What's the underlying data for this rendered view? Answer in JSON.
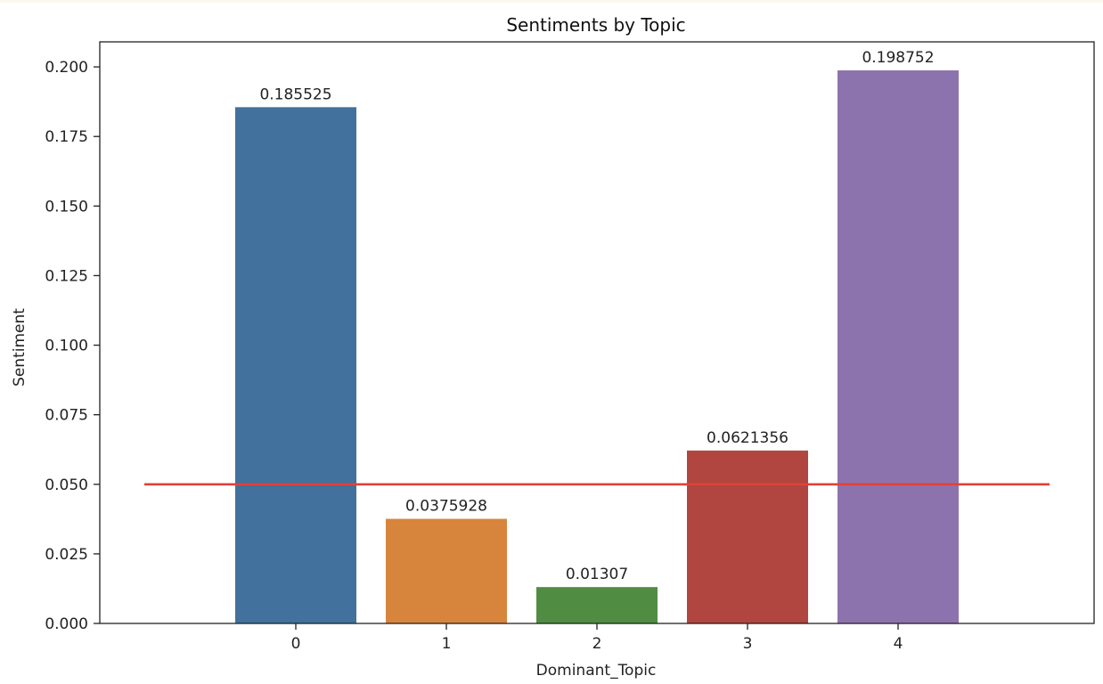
{
  "chart_data": {
    "type": "bar",
    "title": "Sentiments by Topic",
    "xlabel": "Dominant_Topic",
    "ylabel": "Sentiment",
    "categories": [
      "0",
      "1",
      "2",
      "3",
      "4"
    ],
    "values": [
      0.185525,
      0.0375928,
      0.01307,
      0.0621356,
      0.198752
    ],
    "data_labels": [
      "0.185525",
      "0.0375928",
      "0.01307",
      "0.0621356",
      "0.198752"
    ],
    "colors": [
      "#41719c",
      "#d7853d",
      "#508d43",
      "#b0463f",
      "#8d73ad"
    ],
    "ylim": [
      0,
      0.209
    ],
    "yticks": [
      0.0,
      0.025,
      0.05,
      0.075,
      0.1,
      0.125,
      0.15,
      0.175,
      0.2
    ],
    "ytick_labels": [
      "0.000",
      "0.025",
      "0.050",
      "0.075",
      "0.100",
      "0.125",
      "0.150",
      "0.175",
      "0.200"
    ],
    "reference_line": {
      "y": 0.05,
      "color": "#e0413a"
    },
    "grid": false,
    "legend": "none"
  }
}
